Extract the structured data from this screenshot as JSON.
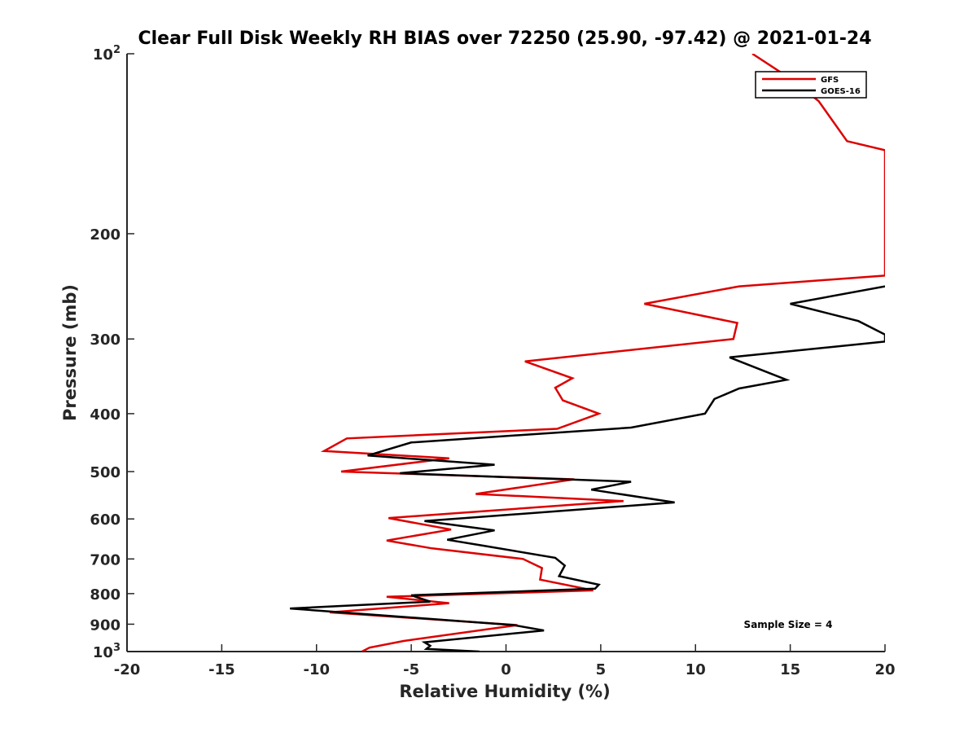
{
  "chart_data": {
    "type": "line",
    "title": "Clear Full Disk Weekly RH BIAS over 72250 (25.90, -97.42) @ 2021-01-24",
    "xlabel": "Relative Humidity (%)",
    "ylabel": "Pressure (mb)",
    "xlim": [
      -20,
      20
    ],
    "ylim": [
      100,
      1000
    ],
    "yscale": "log",
    "y_reversed": true,
    "grid": false,
    "legend_position": "top-right",
    "x_ticks": [
      -20,
      -15,
      -10,
      -5,
      0,
      5,
      10,
      15,
      20
    ],
    "x_tick_labels": [
      "-20",
      "-15",
      "-10",
      "-5",
      "0",
      "5",
      "10",
      "15",
      "20"
    ],
    "y_ticks": [
      200,
      300,
      400,
      500,
      600,
      700,
      800,
      900
    ],
    "y_tick_labels": [
      "200",
      "300",
      "400",
      "500",
      "600",
      "700",
      "800",
      "900"
    ],
    "y_top_label": {
      "base": "10",
      "exp": "2"
    },
    "y_bottom_label": {
      "base": "10",
      "exp": "3"
    },
    "annotation": "Sample Size = 4",
    "series": [
      {
        "name": "GFS",
        "color": "#dd0000",
        "points": [
          [
            13.0,
            100
          ],
          [
            15.0,
            110
          ],
          [
            16.5,
            120
          ],
          [
            18.0,
            140
          ],
          [
            20.0,
            145
          ],
          [
            20.0,
            235
          ],
          [
            12.3,
            245
          ],
          [
            7.3,
            262
          ],
          [
            12.2,
            282
          ],
          [
            12.0,
            300
          ],
          [
            1.0,
            327
          ],
          [
            3.5,
            349
          ],
          [
            2.6,
            362
          ],
          [
            3.0,
            380
          ],
          [
            4.9,
            400
          ],
          [
            2.7,
            424
          ],
          [
            -8.4,
            440
          ],
          [
            -9.6,
            462
          ],
          [
            -3.0,
            475
          ],
          [
            -8.7,
            500
          ],
          [
            3.6,
            515
          ],
          [
            -1.6,
            545
          ],
          [
            6.2,
            560
          ],
          [
            -6.2,
            598
          ],
          [
            -2.9,
            625
          ],
          [
            -6.3,
            652
          ],
          [
            -3.9,
            672
          ],
          [
            0.9,
            700
          ],
          [
            1.9,
            725
          ],
          [
            1.8,
            758
          ],
          [
            4.6,
            790
          ],
          [
            -6.3,
            810
          ],
          [
            -3.0,
            830
          ],
          [
            -9.3,
            860
          ],
          [
            0.6,
            903
          ],
          [
            -5.4,
            960
          ],
          [
            -7.2,
            985
          ],
          [
            -7.6,
            1000
          ]
        ]
      },
      {
        "name": "GOES-16",
        "color": "#000000",
        "points": [
          [
            20.0,
            245
          ],
          [
            15.0,
            262
          ],
          [
            18.6,
            280
          ],
          [
            20.0,
            295
          ],
          [
            20.0,
            303
          ],
          [
            11.8,
            322
          ],
          [
            14.8,
            351
          ],
          [
            12.3,
            363
          ],
          [
            11.0,
            378
          ],
          [
            10.5,
            400
          ],
          [
            6.6,
            422
          ],
          [
            -5.0,
            447
          ],
          [
            -7.3,
            470
          ],
          [
            -0.6,
            487
          ],
          [
            -5.6,
            503
          ],
          [
            6.6,
            520
          ],
          [
            4.5,
            536
          ],
          [
            8.9,
            563
          ],
          [
            -4.3,
            605
          ],
          [
            -0.6,
            627
          ],
          [
            -3.1,
            650
          ],
          [
            -1.2,
            665
          ],
          [
            2.6,
            697
          ],
          [
            3.1,
            718
          ],
          [
            2.8,
            748
          ],
          [
            4.9,
            773
          ],
          [
            4.7,
            785
          ],
          [
            -5.0,
            805
          ],
          [
            -4.0,
            825
          ],
          [
            -11.4,
            847
          ],
          [
            0.4,
            903
          ],
          [
            2.0,
            922
          ],
          [
            -4.3,
            965
          ],
          [
            -4.0,
            978
          ],
          [
            -4.2,
            990
          ],
          [
            -1.4,
            1000
          ]
        ]
      }
    ]
  }
}
